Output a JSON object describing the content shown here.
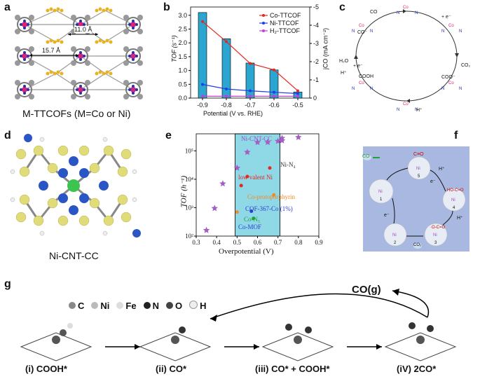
{
  "panels": {
    "a": {
      "label": "a",
      "caption": "M-TTCOFs (M=Co or Ni)",
      "dim_top": "11.0 Å",
      "dim_left": "15.7 Å"
    },
    "b": {
      "label": "b",
      "ylabel_left": "TOF (s⁻¹)",
      "ylabel_right": "jCO (mA cm⁻²)",
      "xlabel": "Potential (V vs. RHE)"
    },
    "c": {
      "label": "c",
      "texts": [
        "CO",
        "+ e⁻",
        "CO₂",
        "H⁺",
        "H₂O",
        "H⁺",
        "+ e⁻",
        "COOH",
        "COO⁻",
        "CO⁻"
      ]
    },
    "d": {
      "label": "d",
      "caption": "Ni-CNT-CC"
    },
    "e": {
      "label": "e",
      "ylabel": "TOF (h⁻¹)",
      "xlabel": "Overpotential (V)",
      "annotations": [
        "Ni-CNT-CC",
        "Ni-N₄",
        "low valent Ni",
        "Co-protoporphyrin",
        "COF-367-Co (1%)",
        "Co-N₅",
        "Co-MOF"
      ]
    },
    "f": {
      "label": "f",
      "texts": [
        "CO",
        "C≡O",
        "H⁺",
        "e⁻",
        "HO-C=O",
        "e⁻",
        "H⁺",
        "·O-C=O",
        "CO₂",
        "1",
        "2",
        "3",
        "4",
        "5"
      ]
    },
    "g": {
      "label": "g",
      "legend": [
        "C",
        "Ni",
        "Fe",
        "N",
        "O",
        "H"
      ],
      "product": "CO(g)",
      "steps": [
        "(i) COOH*",
        "(ii) CO*",
        "(iii) CO* + COOH*",
        "(iV) 2CO*"
      ]
    }
  },
  "chart_data": [
    {
      "type": "bar",
      "panel": "b",
      "xlabel": "Potential (V vs. RHE)",
      "ylabel": "TOF (s⁻¹)",
      "ylabel_right": "jCO (mA cm⁻²)",
      "categories": [
        "-0.9",
        "-0.8",
        "-0.7",
        "-0.6",
        "-0.5"
      ],
      "x": [
        -0.9,
        -0.8,
        -0.7,
        -0.6,
        -0.5
      ],
      "bars": [
        3.1,
        2.15,
        1.27,
        1.02,
        0.22
      ],
      "ylim": [
        0,
        3.3
      ],
      "yticks": [
        0.0,
        0.5,
        1.0,
        1.5,
        2.0,
        2.5,
        3.0
      ],
      "ylim_right": [
        0,
        -5
      ],
      "yticks_right": [
        0,
        -1,
        -2,
        -3,
        -4,
        -5
      ],
      "xlim": [
        -0.95,
        -0.45
      ],
      "series": [
        {
          "name": "Co-TTCOF",
          "color": "#e8261f",
          "values": [
            -4.2,
            -3.1,
            -1.9,
            -1.55,
            -0.4
          ]
        },
        {
          "name": "Ni-TTCOF",
          "color": "#1f3ee8",
          "values": [
            -0.75,
            -0.5,
            -0.4,
            -0.32,
            -0.25
          ]
        },
        {
          "name": "H₂-TTCOF",
          "color": "#c43fd1",
          "values": [
            -0.1,
            -0.1,
            -0.1,
            -0.1,
            -0.1
          ]
        }
      ],
      "bar_color": "#2aa6d1"
    },
    {
      "type": "scatter",
      "panel": "e",
      "xlabel": "Overpotential (V)",
      "ylabel": "TOF (h⁻¹)",
      "xlim": [
        0.3,
        0.9
      ],
      "xticks": [
        0.3,
        0.4,
        0.5,
        0.6,
        0.7,
        0.8,
        0.9
      ],
      "ylim_log": [
        2,
        5.6
      ],
      "yticks": [
        "10²",
        "10³",
        "10⁴",
        "10⁵"
      ],
      "highlight_range": [
        0.49,
        0.71
      ],
      "stars": [
        [
          0.35,
          160
        ],
        [
          0.39,
          950
        ],
        [
          0.43,
          7000
        ],
        [
          0.5,
          25000
        ],
        [
          0.55,
          90000
        ],
        [
          0.6,
          200000
        ],
        [
          0.65,
          200000
        ],
        [
          0.7,
          220000
        ],
        [
          0.72,
          280000
        ],
        [
          0.8,
          300000
        ],
        [
          0.72,
          230000
        ]
      ],
      "points": [
        {
          "x": 0.66,
          "y": 25000,
          "color": "#e8261f"
        },
        {
          "x": 0.52,
          "y": 6000,
          "color": "#e8261f"
        },
        {
          "x": 0.55,
          "y": 12500,
          "color": "#e8261f"
        },
        {
          "x": 0.5,
          "y": 700,
          "color": "#f08a24"
        },
        {
          "x": 0.68,
          "y": 2800,
          "color": "#f08a24"
        },
        {
          "x": 0.57,
          "y": 750,
          "color": "#2a3fd1"
        },
        {
          "x": 0.58,
          "y": 420,
          "color": "#1fa33a"
        }
      ]
    }
  ]
}
